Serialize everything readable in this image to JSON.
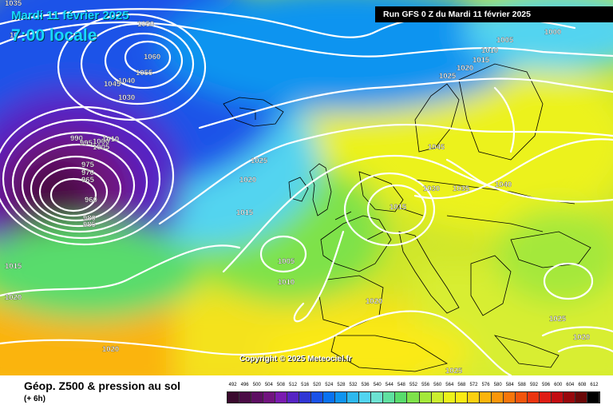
{
  "header": {
    "date_line": "Mardi 11 février 2025",
    "time_line": "7:00 locale",
    "run_info": "Run GFS 0 Z du Mardi 11 février 2025"
  },
  "footer": {
    "product": "Géop. Z500 & pression au sol",
    "offset": "(+ 6h)",
    "copyright": "Copyright © 2025 Meteociel.fr"
  },
  "legend": {
    "values": [
      "492",
      "496",
      "500",
      "504",
      "508",
      "512",
      "516",
      "520",
      "524",
      "528",
      "532",
      "536",
      "540",
      "544",
      "548",
      "552",
      "556",
      "560",
      "564",
      "568",
      "572",
      "576",
      "580",
      "584",
      "588",
      "592",
      "596",
      "600",
      "604",
      "608",
      "612"
    ],
    "colors": [
      "#3a0a2e",
      "#4b0b45",
      "#5d0f62",
      "#71147f",
      "#7a1bb0",
      "#5624c4",
      "#3036d4",
      "#1a52e8",
      "#0a72f0",
      "#0f94f0",
      "#2db8ee",
      "#52d4f0",
      "#6ce2d2",
      "#5fe0a0",
      "#58dc6c",
      "#7ee24a",
      "#a4e83a",
      "#cbee2e",
      "#ecf21a",
      "#fbea14",
      "#fcd010",
      "#fbb40c",
      "#fa960a",
      "#f7760a",
      "#f2540c",
      "#eb3410",
      "#de1c14",
      "#c30d12",
      "#98080c",
      "#6a0808",
      "#000000"
    ]
  },
  "isobars": [
    {
      "label": "1035"
    },
    {
      "label": "1050"
    },
    {
      "label": "1060"
    },
    {
      "label": "1055"
    },
    {
      "label": "1040"
    },
    {
      "label": "1045"
    },
    {
      "label": "1030"
    },
    {
      "label": "1000"
    },
    {
      "label": "1005"
    },
    {
      "label": "1010"
    },
    {
      "label": "1015"
    },
    {
      "label": "1020"
    },
    {
      "label": "1025"
    },
    {
      "label": "1045"
    },
    {
      "label": "1030"
    },
    {
      "label": "1035"
    },
    {
      "label": "1040"
    },
    {
      "label": "1025"
    },
    {
      "label": "1020"
    },
    {
      "label": "1015"
    },
    {
      "label": "1005"
    },
    {
      "label": "1010"
    },
    {
      "label": "1020"
    },
    {
      "label": "1025"
    },
    {
      "label": "1015"
    },
    {
      "label": "1020"
    },
    {
      "label": "1020"
    },
    {
      "label": "1025"
    },
    {
      "label": "1020"
    },
    {
      "label": "975"
    },
    {
      "label": "970"
    },
    {
      "label": "965"
    },
    {
      "label": "960"
    },
    {
      "label": "980"
    },
    {
      "label": "985"
    },
    {
      "label": "990"
    },
    {
      "label": "995"
    },
    {
      "label": "1000"
    },
    {
      "label": "1005"
    },
    {
      "label": "1010"
    },
    {
      "label": "10"
    },
    {
      "label": "1015"
    }
  ],
  "pressure_centers": [
    {
      "type": "low",
      "label": "960"
    },
    {
      "type": "high",
      "label": "1060"
    }
  ]
}
